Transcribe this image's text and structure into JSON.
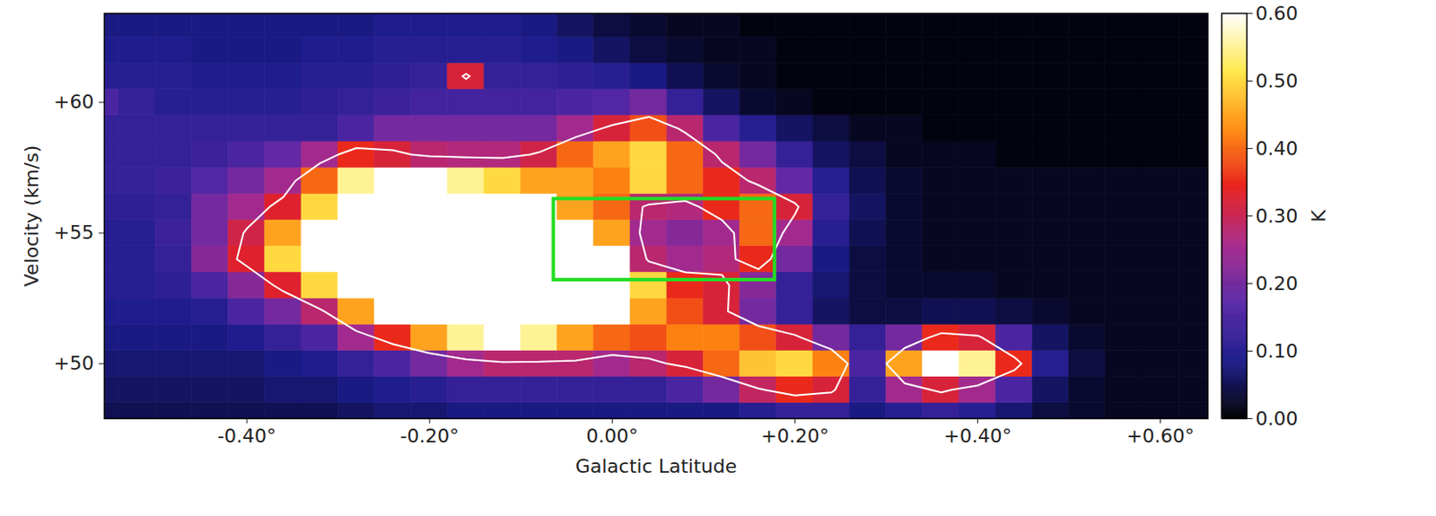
{
  "chart_data": {
    "type": "heatmap",
    "x_label": "Galactic Latitude",
    "y_label": "Velocity (km/s)",
    "xlim": [
      -0.556,
      0.652
    ],
    "ylim": [
      47.9,
      63.4
    ],
    "xticks": [
      {
        "value": -0.4,
        "label": "-0.40°"
      },
      {
        "value": -0.2,
        "label": "-0.20°"
      },
      {
        "value": 0,
        "label": "0.00°"
      },
      {
        "value": 0.2,
        "label": "+0.20°"
      },
      {
        "value": 0.4,
        "label": "+0.40°"
      },
      {
        "value": 0.6,
        "label": "+0.60°"
      }
    ],
    "yticks": [
      {
        "value": 50,
        "label": "+50"
      },
      {
        "value": 55,
        "label": "+55"
      },
      {
        "value": 60,
        "label": "+60"
      }
    ],
    "latitude": [
      -0.56,
      -0.52,
      -0.48,
      -0.44,
      -0.4,
      -0.36,
      -0.32,
      -0.28,
      -0.24,
      -0.2,
      -0.16,
      -0.12,
      -0.08,
      -0.04,
      0.0,
      0.04,
      0.08,
      0.12,
      0.16,
      0.2,
      0.24,
      0.28,
      0.32,
      0.36,
      0.4,
      0.44,
      0.48,
      0.52,
      0.56,
      0.6,
      0.64
    ],
    "velocity": [
      48,
      49,
      50,
      51,
      52,
      53,
      54,
      55,
      56,
      57,
      58,
      59,
      60,
      61,
      62,
      63
    ],
    "cells": [
      [
        0.05,
        0.05,
        0.05,
        0.05,
        0.05,
        0.05,
        0.05,
        0.06,
        0.07,
        0.07,
        0.08,
        0.08,
        0.08,
        0.08,
        0.08,
        0.08,
        0.08,
        0.08,
        0.1,
        0.12,
        0.12,
        0.08,
        0.1,
        0.12,
        0.1,
        0.07,
        0.04,
        0.03,
        0.02,
        0.02,
        0.02
      ],
      [
        0.06,
        0.06,
        0.06,
        0.06,
        0.06,
        0.07,
        0.07,
        0.08,
        0.09,
        0.1,
        0.12,
        0.12,
        0.12,
        0.12,
        0.12,
        0.12,
        0.15,
        0.2,
        0.29,
        0.35,
        0.32,
        0.12,
        0.25,
        0.32,
        0.25,
        0.15,
        0.06,
        0.03,
        0.02,
        0.02,
        0.02
      ],
      [
        0.07,
        0.07,
        0.07,
        0.07,
        0.07,
        0.08,
        0.09,
        0.12,
        0.15,
        0.2,
        0.25,
        0.28,
        0.28,
        0.28,
        0.25,
        0.28,
        0.32,
        0.4,
        0.48,
        0.5,
        0.42,
        0.15,
        0.45,
        0.75,
        0.55,
        0.35,
        0.1,
        0.04,
        0.02,
        0.02,
        0.02
      ],
      [
        0.08,
        0.08,
        0.08,
        0.08,
        0.09,
        0.12,
        0.15,
        0.25,
        0.35,
        0.45,
        0.55,
        0.6,
        0.55,
        0.45,
        0.4,
        0.38,
        0.42,
        0.42,
        0.38,
        0.32,
        0.2,
        0.12,
        0.2,
        0.35,
        0.32,
        0.15,
        0.06,
        0.03,
        0.02,
        0.02,
        0.02
      ],
      [
        0.09,
        0.09,
        0.09,
        0.1,
        0.15,
        0.2,
        0.28,
        0.45,
        0.65,
        0.75,
        0.8,
        0.8,
        0.75,
        0.7,
        0.6,
        0.45,
        0.38,
        0.32,
        0.2,
        0.12,
        0.06,
        0.04,
        0.04,
        0.05,
        0.05,
        0.04,
        0.03,
        0.02,
        0.02,
        0.02,
        0.02
      ],
      [
        0.1,
        0.1,
        0.11,
        0.15,
        0.22,
        0.33,
        0.5,
        0.75,
        0.85,
        0.9,
        0.9,
        0.9,
        0.85,
        0.75,
        0.65,
        0.5,
        0.35,
        0.32,
        0.22,
        0.12,
        0.07,
        0.04,
        0.03,
        0.03,
        0.03,
        0.02,
        0.02,
        0.02,
        0.02,
        0.02,
        0.02
      ],
      [
        0.1,
        0.1,
        0.12,
        0.22,
        0.33,
        0.5,
        0.75,
        0.9,
        0.9,
        0.9,
        0.9,
        0.85,
        0.8,
        0.7,
        0.6,
        0.28,
        0.25,
        0.27,
        0.35,
        0.2,
        0.08,
        0.04,
        0.03,
        0.02,
        0.02,
        0.02,
        0.02,
        0.02,
        0.02,
        0.02,
        0.02
      ],
      [
        0.1,
        0.1,
        0.13,
        0.2,
        0.31,
        0.45,
        0.7,
        0.85,
        0.9,
        0.9,
        0.85,
        0.8,
        0.75,
        0.6,
        0.45,
        0.25,
        0.22,
        0.25,
        0.4,
        0.25,
        0.1,
        0.05,
        0.03,
        0.02,
        0.02,
        0.02,
        0.02,
        0.02,
        0.02,
        0.02,
        0.02
      ],
      [
        0.11,
        0.11,
        0.12,
        0.2,
        0.25,
        0.33,
        0.5,
        0.7,
        0.8,
        0.8,
        0.75,
        0.7,
        0.6,
        0.45,
        0.4,
        0.28,
        0.27,
        0.35,
        0.4,
        0.32,
        0.12,
        0.06,
        0.03,
        0.02,
        0.02,
        0.02,
        0.02,
        0.02,
        0.02,
        0.02,
        0.02
      ],
      [
        0.12,
        0.12,
        0.13,
        0.16,
        0.2,
        0.25,
        0.4,
        0.55,
        0.65,
        0.6,
        0.55,
        0.5,
        0.45,
        0.45,
        0.42,
        0.5,
        0.4,
        0.35,
        0.28,
        0.18,
        0.1,
        0.05,
        0.03,
        0.02,
        0.02,
        0.02,
        0.02,
        0.02,
        0.02,
        0.02,
        0.02
      ],
      [
        0.12,
        0.12,
        0.12,
        0.13,
        0.15,
        0.18,
        0.25,
        0.35,
        0.32,
        0.28,
        0.27,
        0.27,
        0.31,
        0.4,
        0.45,
        0.5,
        0.4,
        0.28,
        0.2,
        0.12,
        0.06,
        0.04,
        0.02,
        0.02,
        0.02,
        0.01,
        0.01,
        0.01,
        0.01,
        0.01,
        0.01
      ],
      [
        0.12,
        0.12,
        0.12,
        0.12,
        0.12,
        0.12,
        0.12,
        0.15,
        0.2,
        0.2,
        0.2,
        0.2,
        0.2,
        0.25,
        0.32,
        0.38,
        0.28,
        0.15,
        0.1,
        0.06,
        0.04,
        0.02,
        0.02,
        0.01,
        0.01,
        0.01,
        0.01,
        0.01,
        0.01,
        0.01,
        0.01
      ],
      [
        0.15,
        0.12,
        0.1,
        0.1,
        0.1,
        0.1,
        0.11,
        0.12,
        0.13,
        0.14,
        0.14,
        0.14,
        0.14,
        0.15,
        0.16,
        0.2,
        0.12,
        0.06,
        0.03,
        0.02,
        0.01,
        0.01,
        0.01,
        0.01,
        0.01,
        0.01,
        0.01,
        0.01,
        0.01,
        0.01,
        0.01
      ],
      [
        0.1,
        0.1,
        0.1,
        0.09,
        0.09,
        0.09,
        0.1,
        0.1,
        0.11,
        0.12,
        0.32,
        0.12,
        0.12,
        0.11,
        0.1,
        0.08,
        0.05,
        0.03,
        0.02,
        0.01,
        0.01,
        0.01,
        0.01,
        0.01,
        0.01,
        0.01,
        0.01,
        0.01,
        0.01,
        0.01,
        0.01
      ],
      [
        0.09,
        0.09,
        0.09,
        0.08,
        0.08,
        0.08,
        0.09,
        0.09,
        0.1,
        0.1,
        0.1,
        0.1,
        0.09,
        0.08,
        0.06,
        0.04,
        0.03,
        0.02,
        0.02,
        0.01,
        0.01,
        0.01,
        0.01,
        0.01,
        0.01,
        0.01,
        0.01,
        0.01,
        0.01,
        0.01,
        0.01
      ],
      [
        0.08,
        0.08,
        0.08,
        0.08,
        0.08,
        0.08,
        0.08,
        0.08,
        0.09,
        0.09,
        0.09,
        0.09,
        0.08,
        0.06,
        0.04,
        0.03,
        0.02,
        0.02,
        0.01,
        0.01,
        0.01,
        0.01,
        0.01,
        0.01,
        0.01,
        0.01,
        0.01,
        0.01,
        0.01,
        0.01,
        0.01
      ]
    ],
    "contour": {
      "level": 0.3,
      "color": "#ffffff"
    },
    "annotations": [
      {
        "type": "rect",
        "x": [
          -0.064,
          0.178
        ],
        "y": [
          53.2,
          56.3
        ],
        "color": "#22dd22"
      }
    ],
    "colorbar": {
      "label": "K",
      "lim": [
        0,
        0.6
      ],
      "ticks": [
        {
          "value": 0,
          "label": "0.00"
        },
        {
          "value": 0.1,
          "label": "0.10"
        },
        {
          "value": 0.2,
          "label": "0.20"
        },
        {
          "value": 0.3,
          "label": "0.30"
        },
        {
          "value": 0.4,
          "label": "0.40"
        },
        {
          "value": 0.5,
          "label": "0.50"
        },
        {
          "value": 0.6,
          "label": "0.60"
        }
      ]
    }
  }
}
